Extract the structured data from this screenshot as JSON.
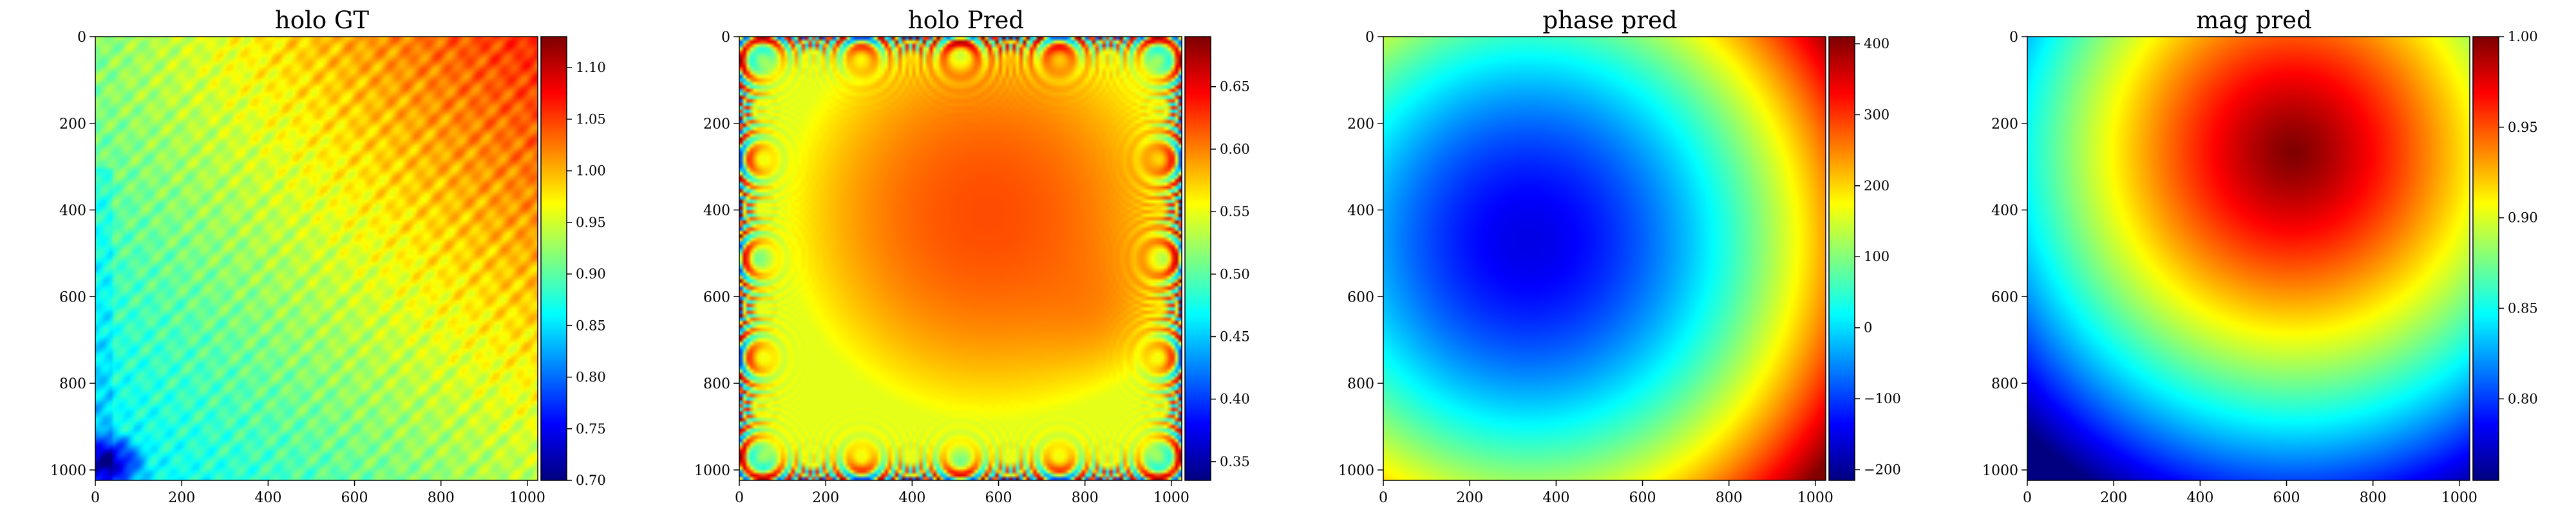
{
  "chart_data": [
    {
      "type": "heatmap",
      "title": "holo GT",
      "xlim": [
        0,
        1024
      ],
      "ylim": [
        0,
        1024
      ],
      "x_ticks": [
        "0",
        "200",
        "400",
        "600",
        "800",
        "1000"
      ],
      "y_ticks": [
        "0",
        "200",
        "400",
        "600",
        "800",
        "1000"
      ],
      "colormap": "jet",
      "colorbar": {
        "min": 0.7,
        "max": 1.13,
        "ticks": [
          0.7,
          0.75,
          0.8,
          0.85,
          0.9,
          0.95,
          1.0,
          1.05,
          1.1
        ],
        "tick_labels": [
          "0.70",
          "0.75",
          "0.80",
          "0.85",
          "0.90",
          "0.95",
          "1.00",
          "1.05",
          "1.10"
        ]
      },
      "pattern": "textured"
    },
    {
      "type": "heatmap",
      "title": "holo Pred",
      "xlim": [
        0,
        1024
      ],
      "ylim": [
        0,
        1024
      ],
      "x_ticks": [
        "0",
        "200",
        "400",
        "600",
        "800",
        "1000"
      ],
      "y_ticks": [
        "0",
        "200",
        "400",
        "600",
        "800",
        "1000"
      ],
      "colormap": "jet",
      "colorbar": {
        "min": 0.335,
        "max": 0.69,
        "ticks": [
          0.35,
          0.4,
          0.45,
          0.5,
          0.55,
          0.6,
          0.65
        ],
        "tick_labels": [
          "0.35",
          "0.40",
          "0.45",
          "0.50",
          "0.55",
          "0.60",
          "0.65"
        ]
      },
      "pattern": "fringes"
    },
    {
      "type": "heatmap",
      "title": "phase pred",
      "xlim": [
        0,
        1024
      ],
      "ylim": [
        0,
        1024
      ],
      "x_ticks": [
        "0",
        "200",
        "400",
        "600",
        "800",
        "1000"
      ],
      "y_ticks": [
        "0",
        "200",
        "400",
        "600",
        "800",
        "1000"
      ],
      "colormap": "jet",
      "colorbar": {
        "min": -215,
        "max": 410,
        "ticks": [
          -200,
          -100,
          0,
          100,
          200,
          300,
          400
        ],
        "tick_labels": [
          "−200",
          "−100",
          "0",
          "100",
          "200",
          "300",
          "400"
        ]
      },
      "pattern": "bowl"
    },
    {
      "type": "heatmap",
      "title": "mag pred",
      "xlim": [
        0,
        1024
      ],
      "ylim": [
        0,
        1024
      ],
      "x_ticks": [
        "0",
        "200",
        "400",
        "600",
        "800",
        "1000"
      ],
      "y_ticks": [
        "0",
        "200",
        "400",
        "600",
        "800",
        "1000"
      ],
      "colormap": "jet",
      "colorbar": {
        "min": 0.755,
        "max": 1.0,
        "ticks": [
          0.8,
          0.85,
          0.9,
          0.95,
          1.0
        ],
        "tick_labels": [
          "0.80",
          "0.85",
          "0.90",
          "0.95",
          "1.00"
        ]
      },
      "pattern": "peak"
    }
  ]
}
